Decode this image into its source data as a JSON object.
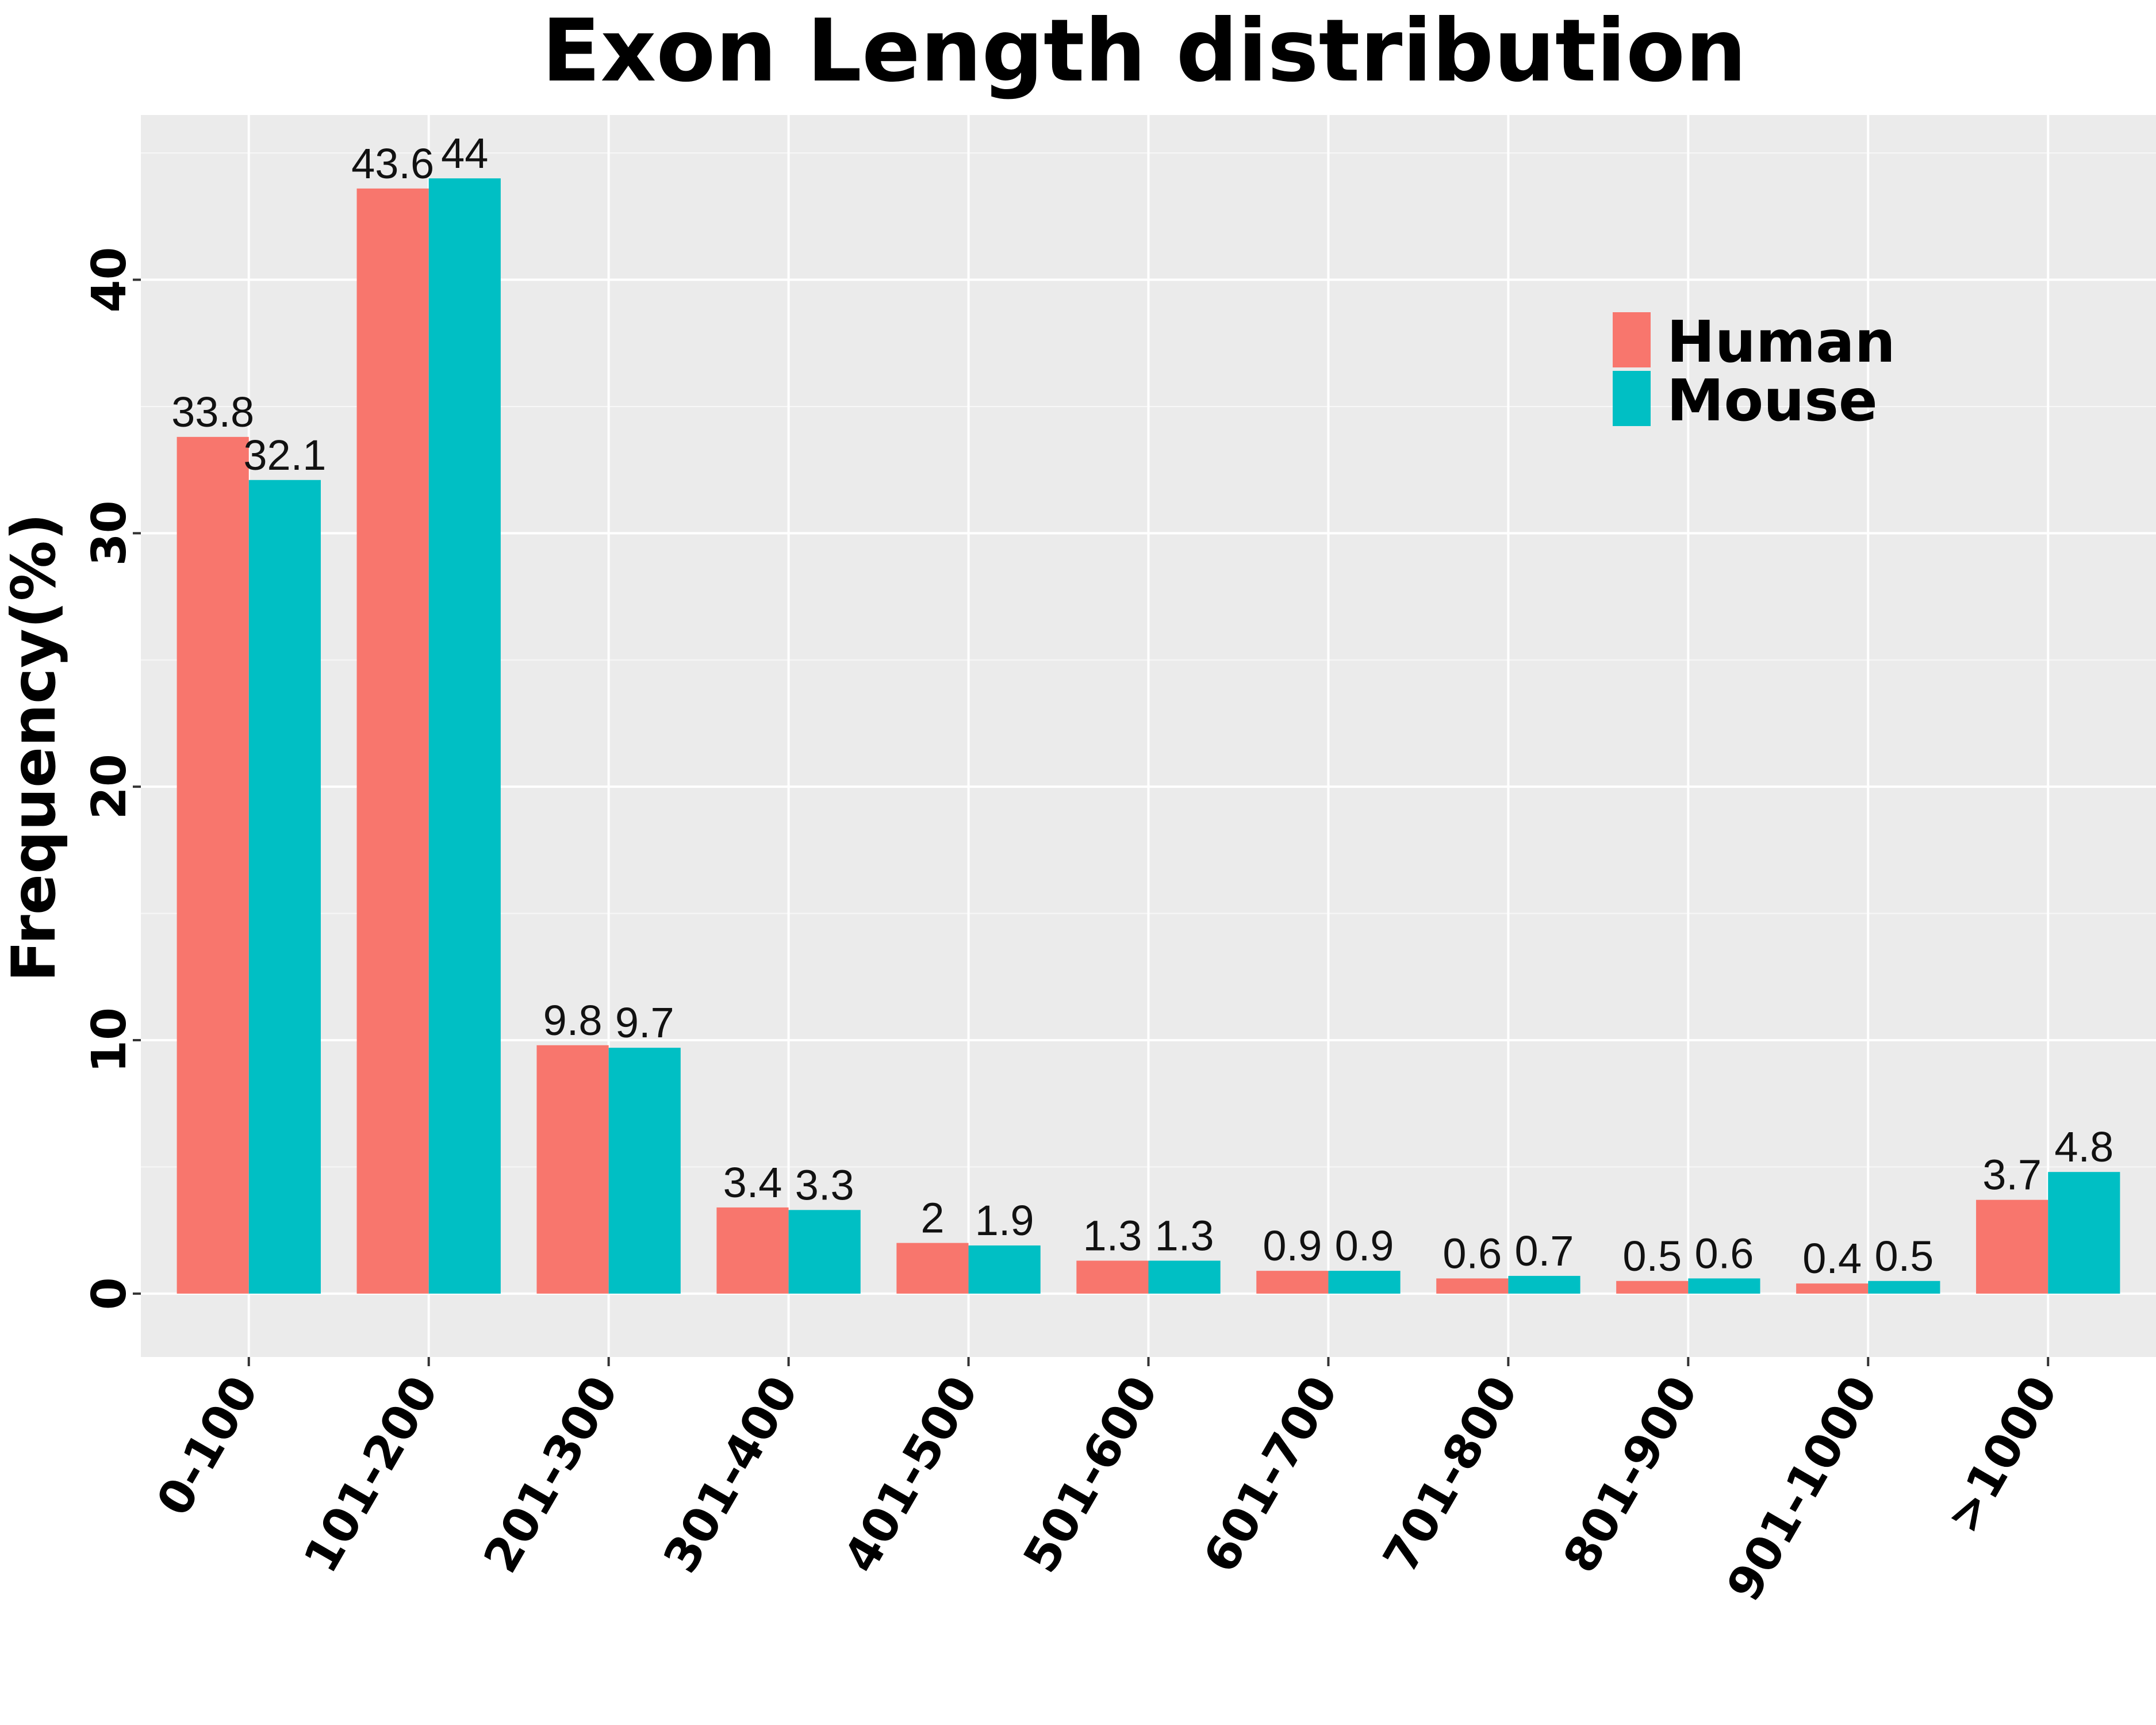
{
  "chart_data": {
    "type": "bar",
    "title": "Exon Length distribution",
    "xlabel": "",
    "ylabel": "Frequency(%)",
    "ylim": [
      -2.5,
      46.5
    ],
    "yticks": [
      0,
      10,
      20,
      30,
      40
    ],
    "grid": true,
    "legend_position": "top-right",
    "categories": [
      "0-100",
      "101-200",
      "201-300",
      "301-400",
      "401-500",
      "501-600",
      "601-700",
      "701-800",
      "801-900",
      "901-1000",
      ">1000"
    ],
    "series": [
      {
        "name": "Human",
        "color": "#F8766D",
        "values": [
          33.8,
          43.6,
          9.8,
          3.4,
          2,
          1.3,
          0.9,
          0.6,
          0.5,
          0.4,
          3.7
        ]
      },
      {
        "name": "Mouse",
        "color": "#00BFC4",
        "values": [
          32.1,
          44,
          9.7,
          3.3,
          1.9,
          1.3,
          0.9,
          0.7,
          0.6,
          0.5,
          4.8
        ]
      }
    ],
    "data_labels": [
      [
        "33.8",
        "43.6",
        "9.8",
        "3.4",
        "2",
        "1.3",
        "0.9",
        "0.6",
        "0.5",
        "0.4",
        "3.7"
      ],
      [
        "32.1",
        "44",
        "9.7",
        "3.3",
        "1.9",
        "1.3",
        "0.9",
        "0.7",
        "0.6",
        "0.5",
        "4.8"
      ]
    ]
  }
}
